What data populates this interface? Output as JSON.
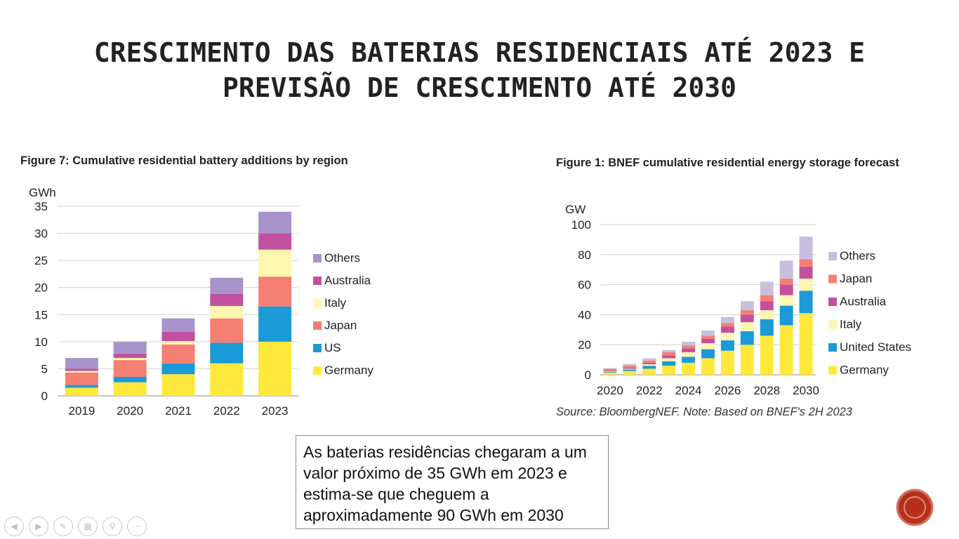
{
  "slide": {
    "title_line1": "CRESCIMENTO DAS BATERIAS RESIDENCIAIS ATÉ 2023 E",
    "title_line2": "PREVISÃO DE CRESCIMENTO ATÉ 2030",
    "note": "As baterias residências chegaram a um valor próximo de 35 GWh em 2023 e estima-se que cheguem a aproximadamente 90 GWh em 2030"
  },
  "source_note": "Source: BloombergNEF. Note: Based on BNEF's 2H 2023",
  "nav_icons": [
    "back-icon",
    "forward-icon",
    "pen-icon",
    "slides-icon",
    "zoom-icon",
    "more-icon"
  ],
  "chart_data": [
    {
      "type": "bar",
      "stacked": true,
      "title": "Figure 7:  Cumulative residential battery additions by region",
      "ylabel": "GWh",
      "ylim": [
        0,
        35
      ],
      "yticks": [
        0,
        5,
        10,
        15,
        20,
        25,
        30,
        35
      ],
      "grid": true,
      "legend": "right",
      "categories": [
        "2019",
        "2020",
        "2021",
        "2022",
        "2023"
      ],
      "series": [
        {
          "name": "Germany",
          "color": "#ffe83c",
          "values": [
            1.5,
            2.5,
            4.0,
            6.0,
            10.0
          ]
        },
        {
          "name": "US",
          "color": "#1a9ad6",
          "values": [
            0.5,
            1.0,
            2.0,
            3.8,
            6.5
          ]
        },
        {
          "name": "Japan",
          "color": "#f47f72",
          "values": [
            2.3,
            3.1,
            3.5,
            4.5,
            5.5
          ]
        },
        {
          "name": "Italy",
          "color": "#fff6b0",
          "values": [
            0.3,
            0.4,
            0.6,
            2.3,
            5.0
          ]
        },
        {
          "name": "Australia",
          "color": "#c1519e",
          "values": [
            0.4,
            0.8,
            1.7,
            2.2,
            3.0
          ]
        },
        {
          "name": "Others",
          "color": "#a993cc",
          "values": [
            2.0,
            2.2,
            2.5,
            3.0,
            4.0
          ]
        }
      ]
    },
    {
      "type": "bar",
      "stacked": true,
      "title": "Figure 1:  BNEF cumulative residential energy storage forecast",
      "ylabel": "GW",
      "ylim": [
        0,
        100
      ],
      "yticks": [
        0,
        20,
        40,
        60,
        80,
        100
      ],
      "grid": true,
      "legend": "right",
      "categories": [
        "2020",
        "2021",
        "2022",
        "2023",
        "2024",
        "2025",
        "2026",
        "2027",
        "2028",
        "2029",
        "2030"
      ],
      "xtick_labels": [
        "2020",
        "",
        "2022",
        "",
        "2024",
        "",
        "2026",
        "",
        "2028",
        "",
        "2030"
      ],
      "series": [
        {
          "name": "Germany",
          "color": "#ffe83c",
          "values": [
            1.5,
            2.5,
            4,
            6,
            8,
            11,
            16,
            20,
            26,
            33,
            41
          ]
        },
        {
          "name": "United States",
          "color": "#1a9ad6",
          "values": [
            0.5,
            1,
            2,
            3,
            4,
            6,
            7,
            9,
            11,
            13,
            15
          ]
        },
        {
          "name": "Italy",
          "color": "#fff6b0",
          "values": [
            0.3,
            0.5,
            1,
            2,
            3,
            4,
            5,
            6,
            6,
            7,
            8
          ]
        },
        {
          "name": "Australia",
          "color": "#c1519e",
          "values": [
            0.4,
            0.7,
            1,
            2,
            2.5,
            3,
            4,
            5,
            6,
            7,
            8
          ]
        },
        {
          "name": "Japan",
          "color": "#f47f72",
          "values": [
            1.2,
            1.5,
            1.5,
            2,
            2,
            2,
            2.5,
            3,
            4,
            4,
            5
          ]
        },
        {
          "name": "Others",
          "color": "#c9bde0",
          "values": [
            0.5,
            1,
            1.5,
            1.5,
            2.5,
            3.5,
            4,
            6,
            9,
            12,
            15
          ]
        }
      ]
    }
  ]
}
